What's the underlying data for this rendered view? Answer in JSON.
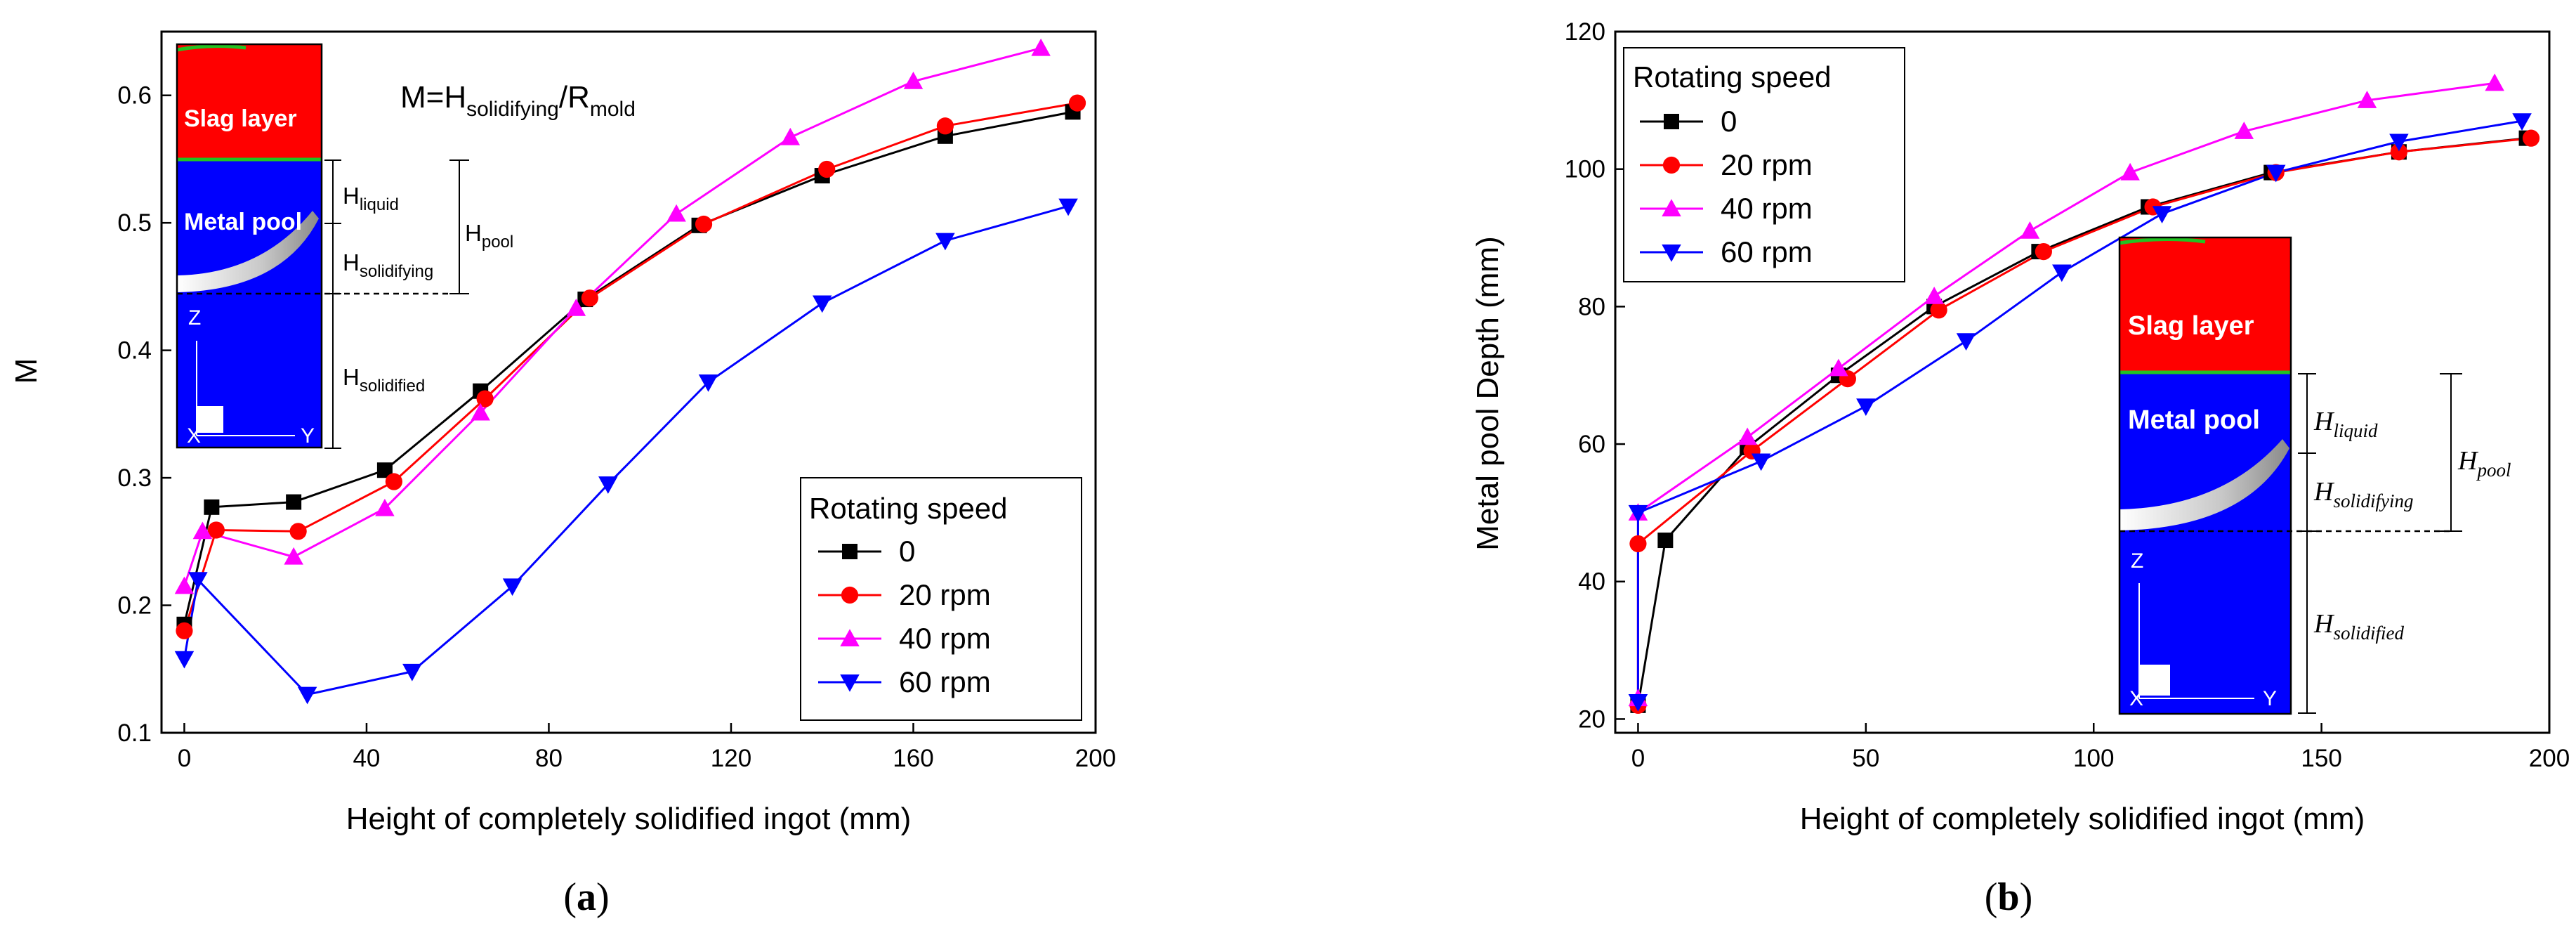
{
  "chart_data": [
    {
      "panel": "(a)",
      "type": "line",
      "xlabel": "Height of completely solidified ingot (mm)",
      "ylabel": "M",
      "xlim": [
        -5,
        200
      ],
      "ylim": [
        0.1,
        0.65
      ],
      "xticks": [
        0,
        40,
        80,
        120,
        160,
        200
      ],
      "yticks": [
        0.1,
        0.2,
        0.3,
        0.4,
        0.5,
        0.6
      ],
      "ytick_labels": [
        "0.1",
        "0.2",
        "0.3",
        "0.4",
        "0.5",
        "0.6"
      ],
      "legend_title": "Rotating speed",
      "legend_position": "bottom-right",
      "annotation": {
        "pre": "M=H",
        "sub1": "solidifying",
        "mid": "/R",
        "sub2": "mold"
      },
      "series": [
        {
          "name": "0",
          "color": "#000000",
          "marker": "square",
          "x": [
            0,
            6,
            24,
            44,
            65,
            88,
            113,
            140,
            167,
            195
          ],
          "y": [
            0.185,
            0.277,
            0.281,
            0.306,
            0.368,
            0.44,
            0.498,
            0.537,
            0.568,
            0.587
          ]
        },
        {
          "name": "20 rpm",
          "color": "#ff0000",
          "marker": "circle",
          "x": [
            0,
            7,
            25,
            46,
            66,
            89,
            114,
            141,
            167,
            196
          ],
          "y": [
            0.18,
            0.259,
            0.258,
            0.297,
            0.362,
            0.441,
            0.499,
            0.542,
            0.576,
            0.594
          ]
        },
        {
          "name": "40 rpm",
          "color": "#ff00ff",
          "marker": "triangle-up",
          "x": [
            0,
            4,
            24,
            44,
            65,
            86,
            108,
            133,
            160,
            188
          ],
          "y": [
            0.215,
            0.258,
            0.238,
            0.276,
            0.351,
            0.433,
            0.507,
            0.567,
            0.611,
            0.637
          ]
        },
        {
          "name": "60 rpm",
          "color": "#0000ff",
          "marker": "triangle-down",
          "x": [
            0,
            3,
            27,
            50,
            72,
            93,
            115,
            140,
            167,
            194
          ],
          "y": [
            0.158,
            0.22,
            0.13,
            0.148,
            0.215,
            0.295,
            0.375,
            0.437,
            0.486,
            0.513
          ]
        }
      ],
      "inset": {
        "slag_label": "Slag layer",
        "pool_label": "Metal pool",
        "axis_z": "Z",
        "axis_y": "Y",
        "axis_x": "X",
        "h_liquid": {
          "base": "H",
          "sub": "liquid"
        },
        "h_solidifying": {
          "base": "H",
          "sub": "solidifying"
        },
        "h_solidified": {
          "base": "H",
          "sub": "solidified"
        },
        "h_pool": {
          "base": "H",
          "sub": "pool"
        }
      }
    },
    {
      "panel": "(b)",
      "type": "line",
      "xlabel": "Height of completely solidified ingot (mm)",
      "ylabel": "Metal pool Depth (mm)",
      "xlim": [
        -5,
        200
      ],
      "ylim": [
        18,
        120
      ],
      "xticks": [
        0,
        50,
        100,
        150,
        200
      ],
      "yticks": [
        20,
        40,
        60,
        80,
        100,
        120
      ],
      "legend_title": "Rotating speed",
      "legend_position": "top-left",
      "series": [
        {
          "name": "0",
          "color": "#000000",
          "marker": "square",
          "x": [
            0,
            6,
            24,
            44,
            65,
            88,
            112,
            139,
            167,
            195
          ],
          "y": [
            22,
            46,
            59.5,
            70,
            80,
            88,
            94.5,
            99.5,
            102.5,
            104.5
          ]
        },
        {
          "name": "20 rpm",
          "color": "#ff0000",
          "marker": "circle",
          "x": [
            0,
            0,
            25,
            46,
            66,
            89,
            113,
            140,
            167,
            196
          ],
          "y": [
            22,
            45.5,
            59,
            69.5,
            79.5,
            88,
            94.5,
            99.5,
            102.5,
            104.5
          ]
        },
        {
          "name": "40 rpm",
          "color": "#ff00ff",
          "marker": "triangle-up",
          "x": [
            0,
            0,
            24,
            44,
            65,
            86,
            108,
            133,
            160,
            188
          ],
          "y": [
            23,
            50,
            61,
            71,
            81.5,
            91,
            99.5,
            105.5,
            110,
            112.5
          ]
        },
        {
          "name": "60 rpm",
          "color": "#0000ff",
          "marker": "triangle-down",
          "x": [
            0,
            0,
            27,
            50,
            72,
            93,
            115,
            140,
            167,
            194
          ],
          "y": [
            22.5,
            50,
            57.5,
            65.5,
            75,
            85,
            93.5,
            99.5,
            104,
            107
          ]
        }
      ],
      "inset": {
        "slag_label": "Slag layer",
        "pool_label": "Metal pool",
        "axis_z": "Z",
        "axis_y": "Y",
        "axis_x": "X",
        "h_liquid": {
          "base": "H",
          "sub": "liquid"
        },
        "h_solidifying": {
          "base": "H",
          "sub": "solidifying"
        },
        "h_solidified": {
          "base": "H",
          "sub": "solidified"
        },
        "h_pool": {
          "base": "H",
          "sub": "pool"
        }
      }
    }
  ],
  "colors": {
    "slag": "#ff0000",
    "pool": "#0000ff",
    "frame": "#000000"
  }
}
